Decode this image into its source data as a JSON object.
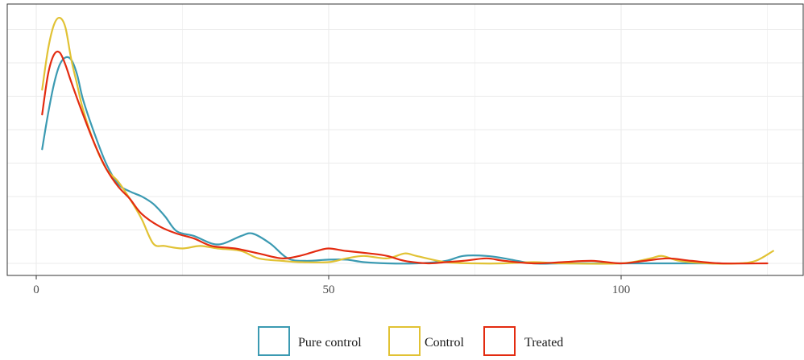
{
  "chart_data": {
    "type": "line",
    "title": "",
    "xlabel": "",
    "ylabel": "",
    "xlim": [
      -2,
      130
    ],
    "ylim": [
      0,
      1
    ],
    "x_ticks": [
      0,
      50,
      100
    ],
    "x_tick_labels": [
      "0",
      "50",
      "100"
    ],
    "grid": true,
    "legend_position": "bottom",
    "series": [
      {
        "name": "Pure control",
        "color": "#3b9ab2",
        "points": [
          [
            1,
            0.46
          ],
          [
            2,
            0.6
          ],
          [
            3,
            0.72
          ],
          [
            4,
            0.8
          ],
          [
            5,
            0.83
          ],
          [
            6,
            0.82
          ],
          [
            7,
            0.76
          ],
          [
            8,
            0.66
          ],
          [
            10,
            0.52
          ],
          [
            12,
            0.4
          ],
          [
            14,
            0.32
          ],
          [
            16,
            0.29
          ],
          [
            18,
            0.27
          ],
          [
            20,
            0.24
          ],
          [
            22,
            0.19
          ],
          [
            24,
            0.13
          ],
          [
            27,
            0.11
          ],
          [
            30,
            0.08
          ],
          [
            32,
            0.08
          ],
          [
            35,
            0.11
          ],
          [
            37,
            0.12
          ],
          [
            40,
            0.08
          ],
          [
            43,
            0.02
          ],
          [
            46,
            0.01
          ],
          [
            50,
            0.015
          ],
          [
            53,
            0.015
          ],
          [
            56,
            0.005
          ],
          [
            60,
            0.0
          ],
          [
            65,
            0.0
          ],
          [
            70,
            0.01
          ],
          [
            73,
            0.03
          ],
          [
            77,
            0.03
          ],
          [
            80,
            0.02
          ],
          [
            85,
            0.0
          ],
          [
            90,
            0.0
          ],
          [
            100,
            0.0
          ],
          [
            110,
            0.0
          ],
          [
            117,
            0.0
          ]
        ]
      },
      {
        "name": "Control",
        "color": "#e1c234",
        "points": [
          [
            1,
            0.7
          ],
          [
            2,
            0.86
          ],
          [
            3,
            0.96
          ],
          [
            4,
            0.99
          ],
          [
            5,
            0.95
          ],
          [
            6,
            0.82
          ],
          [
            7,
            0.72
          ],
          [
            8,
            0.62
          ],
          [
            10,
            0.48
          ],
          [
            12,
            0.38
          ],
          [
            14,
            0.33
          ],
          [
            16,
            0.26
          ],
          [
            18,
            0.18
          ],
          [
            20,
            0.08
          ],
          [
            22,
            0.07
          ],
          [
            25,
            0.06
          ],
          [
            28,
            0.07
          ],
          [
            31,
            0.06
          ],
          [
            35,
            0.05
          ],
          [
            38,
            0.02
          ],
          [
            42,
            0.01
          ],
          [
            45,
            0.005
          ],
          [
            50,
            0.005
          ],
          [
            53,
            0.02
          ],
          [
            56,
            0.03
          ],
          [
            60,
            0.02
          ],
          [
            63,
            0.04
          ],
          [
            65,
            0.03
          ],
          [
            70,
            0.005
          ],
          [
            75,
            0.0
          ],
          [
            80,
            0.0
          ],
          [
            85,
            0.005
          ],
          [
            90,
            0.0
          ],
          [
            100,
            0.0
          ],
          [
            105,
            0.02
          ],
          [
            107,
            0.03
          ],
          [
            110,
            0.01
          ],
          [
            115,
            0.0
          ],
          [
            120,
            0.0
          ],
          [
            123,
            0.01
          ],
          [
            126,
            0.05
          ]
        ]
      },
      {
        "name": "Treated",
        "color": "#e32b10",
        "points": [
          [
            1,
            0.6
          ],
          [
            2,
            0.76
          ],
          [
            3,
            0.84
          ],
          [
            4,
            0.85
          ],
          [
            5,
            0.8
          ],
          [
            6,
            0.73
          ],
          [
            8,
            0.6
          ],
          [
            10,
            0.48
          ],
          [
            12,
            0.38
          ],
          [
            14,
            0.31
          ],
          [
            16,
            0.26
          ],
          [
            18,
            0.2
          ],
          [
            21,
            0.15
          ],
          [
            24,
            0.12
          ],
          [
            27,
            0.1
          ],
          [
            30,
            0.07
          ],
          [
            34,
            0.06
          ],
          [
            38,
            0.04
          ],
          [
            42,
            0.02
          ],
          [
            45,
            0.03
          ],
          [
            48,
            0.05
          ],
          [
            50,
            0.06
          ],
          [
            53,
            0.05
          ],
          [
            57,
            0.04
          ],
          [
            60,
            0.03
          ],
          [
            63,
            0.01
          ],
          [
            67,
            0.0
          ],
          [
            70,
            0.005
          ],
          [
            73,
            0.01
          ],
          [
            77,
            0.02
          ],
          [
            80,
            0.01
          ],
          [
            85,
            0.0
          ],
          [
            90,
            0.005
          ],
          [
            95,
            0.01
          ],
          [
            100,
            0.0
          ],
          [
            104,
            0.01
          ],
          [
            108,
            0.02
          ],
          [
            112,
            0.01
          ],
          [
            117,
            0.0
          ],
          [
            125,
            0.0
          ]
        ]
      }
    ]
  }
}
